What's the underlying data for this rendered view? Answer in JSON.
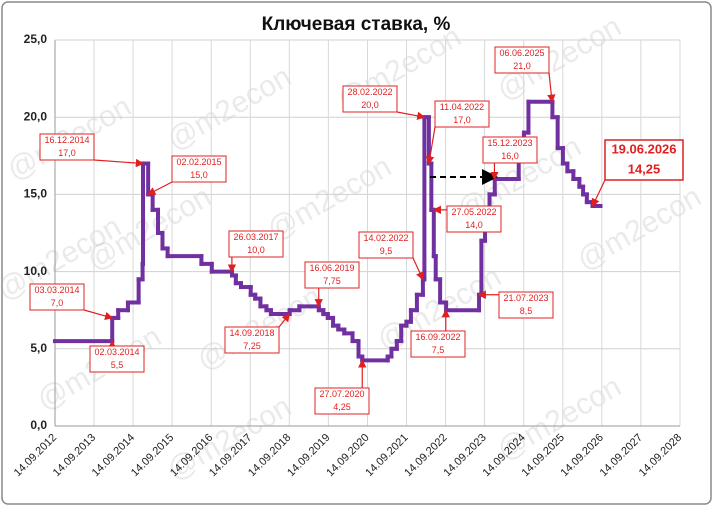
{
  "chart_data": {
    "type": "line",
    "step": true,
    "title": "Ключевая ставка, %",
    "watermark": "@m2econ",
    "xlim": [
      "14.09.2012",
      "14.09.2028"
    ],
    "xticks": [
      "14.09.2012",
      "14.09.2013",
      "14.09.2014",
      "14.09.2015",
      "14.09.2016",
      "14.09.2017",
      "14.09.2018",
      "14.09.2019",
      "14.09.2020",
      "14.09.2021",
      "14.09.2022",
      "14.09.2023",
      "14.09.2024",
      "14.09.2025",
      "14.09.2026",
      "14.09.2027",
      "14.09.2028"
    ],
    "ylim": [
      0,
      25
    ],
    "yticks": [
      {
        "value": 0,
        "label": "0,0"
      },
      {
        "value": 5,
        "label": "5,0"
      },
      {
        "value": 10,
        "label": "10,0"
      },
      {
        "value": 15,
        "label": "15,0"
      },
      {
        "value": 20,
        "label": "20,0"
      },
      {
        "value": 25,
        "label": "25,0"
      }
    ],
    "grid": true,
    "series": [
      {
        "color": "#7030a0",
        "x": [
          "14.09.2012",
          "03.03.2014",
          "28.04.2014",
          "28.07.2014",
          "05.11.2014",
          "12.12.2014",
          "16.12.2014",
          "02.02.2015",
          "16.03.2015",
          "05.05.2015",
          "16.06.2015",
          "03.08.2015",
          "14.06.2016",
          "19.09.2016",
          "27.03.2017",
          "02.05.2017",
          "19.06.2017",
          "18.09.2017",
          "30.10.2017",
          "18.12.2017",
          "12.02.2018",
          "26.03.2018",
          "17.09.2018",
          "17.12.2018",
          "17.06.2019",
          "29.07.2019",
          "09.09.2019",
          "28.10.2019",
          "16.12.2019",
          "10.02.2020",
          "27.04.2020",
          "22.06.2020",
          "27.07.2020",
          "22.03.2021",
          "26.04.2021",
          "15.06.2021",
          "26.07.2021",
          "13.09.2021",
          "25.10.2021",
          "20.12.2021",
          "14.02.2022",
          "28.02.2022",
          "11.04.2022",
          "04.05.2022",
          "27.05.2022",
          "14.06.2022",
          "25.07.2022",
          "19.09.2022",
          "24.07.2023",
          "15.08.2023",
          "18.09.2023",
          "30.10.2023",
          "18.12.2023",
          "29.07.2024",
          "16.09.2024",
          "28.10.2024",
          "09.06.2025",
          "28.07.2025",
          "15.09.2025",
          "27.10.2025",
          "22.12.2025",
          "16.02.2026",
          "23.03.2026",
          "27.04.2026",
          "19.06.2026"
        ],
        "values": [
          5.5,
          7,
          7.5,
          8,
          9.5,
          10.5,
          17,
          15,
          14,
          12.5,
          11.5,
          11,
          10.5,
          10,
          9.75,
          9.25,
          9,
          8.5,
          8.25,
          7.75,
          7.5,
          7.25,
          7.5,
          7.75,
          7.5,
          7.25,
          7,
          6.5,
          6.25,
          6,
          5.5,
          4.5,
          4.25,
          4.5,
          5,
          5.5,
          6.5,
          6.75,
          7.5,
          8.5,
          9.5,
          20,
          17,
          14,
          11,
          9.5,
          8,
          7.5,
          8.5,
          12,
          13,
          15,
          16,
          18,
          19,
          21,
          20,
          18,
          17,
          16.5,
          16,
          15.5,
          15,
          14.5,
          14.25
        ]
      }
    ],
    "annotations": [
      {
        "date": "16.12.2014",
        "value": 17,
        "label": "17,0"
      },
      {
        "date": "02.02.2015",
        "value": 15,
        "label": "15,0"
      },
      {
        "date": "03.03.2014",
        "value": 7,
        "label": "7,0"
      },
      {
        "date": "02.03.2014",
        "value": 5.5,
        "label": "5,5"
      },
      {
        "date": "26.03.2017",
        "value": 10,
        "label": "10,0"
      },
      {
        "date": "14.09.2018",
        "value": 7.25,
        "label": "7,25"
      },
      {
        "date": "16.06.2019",
        "value": 7.75,
        "label": "7,75"
      },
      {
        "date": "27.07.2020",
        "value": 4.25,
        "label": "4,25"
      },
      {
        "date": "14.02.2022",
        "value": 9.5,
        "label": "9,5"
      },
      {
        "date": "28.02.2022",
        "value": 20,
        "label": "20,0"
      },
      {
        "date": "11.04.2022",
        "value": 17,
        "label": "17,0"
      },
      {
        "date": "27.05.2022",
        "value": 14,
        "label": "14,0"
      },
      {
        "date": "16.09.2022",
        "value": 7.5,
        "label": "7,5"
      },
      {
        "date": "21.07.2023",
        "value": 8.5,
        "label": "8,5"
      },
      {
        "date": "15.12.2023",
        "value": 16,
        "label": "16,0"
      },
      {
        "date": "06.06.2025",
        "value": 21,
        "label": "21,0"
      },
      {
        "date": "19.06.2026",
        "value": 14.25,
        "label": "14,25"
      }
    ]
  }
}
